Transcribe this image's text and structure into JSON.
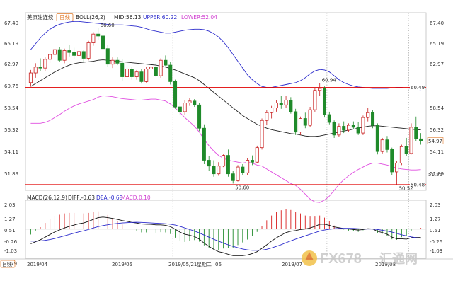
{
  "colors": {
    "up": "#c81e1e",
    "down": "#1f8a2a",
    "mid": "#222222",
    "upper": "#2b2bcc",
    "lower": "#e04de0",
    "hline": "#e00000",
    "dashed": "#4aa8b8",
    "diff": "#111111",
    "dea": "#2b2bcc",
    "hist_pos": "#d81e1e",
    "hist_neg": "#1f8a2a"
  },
  "legend": {
    "symbol": "美原油连续",
    "period_badge": "日线",
    "boll": "BOLL(26,2)",
    "mid": "MID:56.13",
    "upper": "UPPER:60.22",
    "lower": "LOWER:52.04",
    "macd": "MACD(26,12,9)",
    "diff": "DIFF:-0.63",
    "dea": "DEA:-0.68",
    "macd_val": "MACD:0.10"
  },
  "left_axis_main": [
    "67.40",
    "65.19",
    "62.97",
    "60.76",
    "58.54",
    "56.32",
    "54.11",
    "51.89"
  ],
  "right_axis_main": [
    "67.40",
    "65.19",
    "62.97",
    "60.76",
    "58.54",
    "56.32",
    "54.11",
    "51.89"
  ],
  "left_axis_macd": [
    "2.03",
    "1.27",
    "0.51",
    "-0.26",
    "-1.03",
    "-1.79"
  ],
  "right_axis_macd": [
    "2.03",
    "1.27",
    "0.51",
    "-0.26",
    "-1.03",
    "-1.79"
  ],
  "price_labels": {
    "resistance": "60.49",
    "support": "50.48",
    "last": "54.97",
    "right_extra": "51.55"
  },
  "annotations": {
    "high1": "66.60",
    "high2": "60.94",
    "low1": "50.60",
    "low2": "50.52"
  },
  "bottom": {
    "period": "日线",
    "d1": "2019/04",
    "d2": "2019/05",
    "cursor_date": "2019/05/21",
    "cursor_day": "星期二",
    "d3": "06",
    "d4": "2019/07",
    "d5": "2019/08"
  },
  "watermark": {
    "brand": "FX678",
    "cn": "汇通网"
  },
  "chart_data": [
    {
      "type": "candlestick",
      "title": "美原油连续",
      "ylim": [
        49.9,
        68.2
      ],
      "yticks": [
        67.4,
        65.19,
        62.97,
        60.76,
        58.54,
        56.32,
        54.11,
        51.89
      ],
      "hlines": [
        60.49,
        50.48
      ],
      "dashed_hline": 54.97,
      "ohlc": [
        [
          61.0,
          62.3,
          60.6,
          62.0
        ],
        [
          62.0,
          63.0,
          61.5,
          62.6
        ],
        [
          62.6,
          63.5,
          62.2,
          62.5
        ],
        [
          62.5,
          63.6,
          62.2,
          63.4
        ],
        [
          63.4,
          64.3,
          63.0,
          63.9
        ],
        [
          63.9,
          64.8,
          63.4,
          64.4
        ],
        [
          64.4,
          64.7,
          63.1,
          63.3
        ],
        [
          63.3,
          64.5,
          63.0,
          64.3
        ],
        [
          64.3,
          64.9,
          63.7,
          64.1
        ],
        [
          64.1,
          64.6,
          63.4,
          63.8
        ],
        [
          63.8,
          64.5,
          63.2,
          64.2
        ],
        [
          64.2,
          64.4,
          63.1,
          63.5
        ],
        [
          63.5,
          65.3,
          63.3,
          65.1
        ],
        [
          65.1,
          66.2,
          64.8,
          66.0
        ],
        [
          66.0,
          66.6,
          65.4,
          65.8
        ],
        [
          65.8,
          66.0,
          64.3,
          64.5
        ],
        [
          64.5,
          64.9,
          62.6,
          62.9
        ],
        [
          62.9,
          63.6,
          62.5,
          63.3
        ],
        [
          63.3,
          63.6,
          62.8,
          63.0
        ],
        [
          63.0,
          63.4,
          61.2,
          61.6
        ],
        [
          61.6,
          62.7,
          61.4,
          62.4
        ],
        [
          62.4,
          62.6,
          61.3,
          61.6
        ],
        [
          61.6,
          62.3,
          61.3,
          62.1
        ],
        [
          62.1,
          62.4,
          60.9,
          61.1
        ],
        [
          61.1,
          62.6,
          61.0,
          62.4
        ],
        [
          62.4,
          63.1,
          61.9,
          62.6
        ],
        [
          62.6,
          63.0,
          61.6,
          61.7
        ],
        [
          61.7,
          63.5,
          61.5,
          63.3
        ],
        [
          63.3,
          63.8,
          62.7,
          62.8
        ],
        [
          62.8,
          63.1,
          60.8,
          61.1
        ],
        [
          61.1,
          61.3,
          58.3,
          58.5
        ],
        [
          58.5,
          59.0,
          57.7,
          58.0
        ],
        [
          58.0,
          59.2,
          57.7,
          58.9
        ],
        [
          58.9,
          59.4,
          58.6,
          59.1
        ],
        [
          59.1,
          59.3,
          58.5,
          58.7
        ],
        [
          58.7,
          58.9,
          56.0,
          56.3
        ],
        [
          56.3,
          56.7,
          52.6,
          53.0
        ],
        [
          53.0,
          53.4,
          51.9,
          52.4
        ],
        [
          52.4,
          53.0,
          51.3,
          51.6
        ],
        [
          51.6,
          52.8,
          51.4,
          52.4
        ],
        [
          52.4,
          53.6,
          52.3,
          53.5
        ],
        [
          53.5,
          54.1,
          51.3,
          51.6
        ],
        [
          51.6,
          51.9,
          50.6,
          50.9
        ],
        [
          50.9,
          52.5,
          50.8,
          52.3
        ],
        [
          52.3,
          52.6,
          51.5,
          51.7
        ],
        [
          51.7,
          53.2,
          51.5,
          53.0
        ],
        [
          53.0,
          53.5,
          52.5,
          52.8
        ],
        [
          52.8,
          54.5,
          52.7,
          54.3
        ],
        [
          54.3,
          57.3,
          54.1,
          57.1
        ],
        [
          57.1,
          58.2,
          56.6,
          57.9
        ],
        [
          57.9,
          58.6,
          57.3,
          58.4
        ],
        [
          58.4,
          59.2,
          58.0,
          58.9
        ],
        [
          58.9,
          59.6,
          58.3,
          58.7
        ],
        [
          58.7,
          59.6,
          58.4,
          59.2
        ],
        [
          59.2,
          59.5,
          57.8,
          58.0
        ],
        [
          58.0,
          58.3,
          55.6,
          55.9
        ],
        [
          55.9,
          57.5,
          55.6,
          57.3
        ],
        [
          57.3,
          57.9,
          56.3,
          56.6
        ],
        [
          56.6,
          58.5,
          56.4,
          58.2
        ],
        [
          58.2,
          60.5,
          58.0,
          60.2
        ],
        [
          60.2,
          60.94,
          59.6,
          60.4
        ],
        [
          60.4,
          60.6,
          57.4,
          57.7
        ],
        [
          57.7,
          58.0,
          56.7,
          56.9
        ],
        [
          56.9,
          57.1,
          55.3,
          55.6
        ],
        [
          55.6,
          56.8,
          55.4,
          56.5
        ],
        [
          56.5,
          57.0,
          55.8,
          56.1
        ],
        [
          56.1,
          56.8,
          55.9,
          56.6
        ],
        [
          56.6,
          57.0,
          56.2,
          56.4
        ],
        [
          56.4,
          56.9,
          55.6,
          55.8
        ],
        [
          55.8,
          57.6,
          55.6,
          57.4
        ],
        [
          57.4,
          58.4,
          57.0,
          57.9
        ],
        [
          57.9,
          58.2,
          56.3,
          56.6
        ],
        [
          56.6,
          56.8,
          53.6,
          53.9
        ],
        [
          53.9,
          55.3,
          53.7,
          55.1
        ],
        [
          55.1,
          55.5,
          53.8,
          54.1
        ],
        [
          54.1,
          54.3,
          51.5,
          51.8
        ],
        [
          51.8,
          52.9,
          50.52,
          52.7
        ],
        [
          52.7,
          54.6,
          52.5,
          54.4
        ],
        [
          54.4,
          55.3,
          53.4,
          53.7
        ],
        [
          53.7,
          56.8,
          53.6,
          56.4
        ],
        [
          56.4,
          57.5,
          55.0,
          55.2
        ],
        [
          55.2,
          55.8,
          54.6,
          54.97
        ]
      ]
    },
    {
      "type": "line",
      "title": "BOLL(26,2)",
      "series": [
        {
          "name": "MID",
          "values": [
            60.6,
            60.9,
            61.2,
            61.5,
            61.8,
            62.1,
            62.35,
            62.6,
            62.8,
            62.95,
            63.05,
            63.1,
            63.15,
            63.2,
            63.3,
            63.35,
            63.3,
            63.25,
            63.2,
            63.15,
            63.1,
            63.05,
            63.0,
            62.95,
            62.9,
            62.85,
            62.8,
            62.7,
            62.6,
            62.45,
            62.3,
            62.1,
            61.9,
            61.7,
            61.5,
            61.2,
            60.8,
            60.4,
            60.0,
            59.6,
            59.2,
            58.8,
            58.4,
            58.0,
            57.6,
            57.3,
            57.0,
            56.7,
            56.5,
            56.3,
            56.15,
            56.05,
            55.95,
            55.85,
            55.75,
            55.7,
            55.6,
            55.5,
            55.45,
            55.45,
            55.5,
            55.6,
            55.7,
            55.8,
            55.9,
            56.0,
            56.1,
            56.2,
            56.3,
            56.4,
            56.5,
            56.55,
            56.55,
            56.5,
            56.45,
            56.4,
            56.35,
            56.3,
            56.25,
            56.2,
            56.15,
            56.13
          ]
        },
        {
          "name": "UPPER",
          "values": [
            64.4,
            65.0,
            65.6,
            66.1,
            66.5,
            66.8,
            67.0,
            67.15,
            67.25,
            67.3,
            67.3,
            67.25,
            67.2,
            67.15,
            67.1,
            67.05,
            67.0,
            66.95,
            66.95,
            66.95,
            66.9,
            66.85,
            66.8,
            66.7,
            66.55,
            66.4,
            66.3,
            66.2,
            66.1,
            66.1,
            66.2,
            66.3,
            66.4,
            66.45,
            66.5,
            66.5,
            66.45,
            66.3,
            66.05,
            65.7,
            65.2,
            64.6,
            63.9,
            63.2,
            62.5,
            61.8,
            61.3,
            60.9,
            60.6,
            60.5,
            60.5,
            60.6,
            60.7,
            60.8,
            60.9,
            61.0,
            61.2,
            61.5,
            61.9,
            62.2,
            62.35,
            62.3,
            62.1,
            61.7,
            61.3,
            61.0,
            60.8,
            60.65,
            60.55,
            60.5,
            60.45,
            60.4,
            60.4,
            60.4,
            60.4,
            60.45,
            60.5,
            60.5,
            60.45,
            60.4,
            60.3,
            60.22
          ]
        },
        {
          "name": "LOWER",
          "values": [
            56.8,
            56.8,
            56.8,
            56.9,
            57.1,
            57.4,
            57.7,
            58.05,
            58.35,
            58.6,
            58.8,
            58.95,
            59.1,
            59.25,
            59.5,
            59.65,
            59.6,
            59.55,
            59.45,
            59.35,
            59.3,
            59.25,
            59.2,
            59.2,
            59.25,
            59.3,
            59.3,
            59.2,
            59.1,
            58.8,
            58.4,
            57.9,
            57.4,
            56.95,
            56.5,
            55.9,
            55.15,
            54.5,
            53.95,
            53.5,
            53.2,
            53.0,
            52.9,
            52.8,
            52.7,
            52.8,
            52.7,
            52.5,
            52.4,
            52.1,
            51.8,
            51.5,
            51.2,
            50.9,
            50.6,
            50.4,
            50.0,
            49.5,
            49.0,
            48.7,
            48.65,
            48.9,
            49.3,
            49.9,
            50.5,
            51.0,
            51.4,
            51.75,
            52.05,
            52.3,
            52.55,
            52.7,
            52.7,
            52.6,
            52.5,
            52.35,
            52.2,
            52.1,
            52.05,
            52.0,
            52.0,
            52.04
          ]
        }
      ]
    },
    {
      "type": "bar",
      "title": "MACD(26,12,9)",
      "ylim": [
        -2.2,
        2.2
      ],
      "yticks": [
        2.03,
        1.27,
        0.51,
        -0.26,
        -1.03,
        -1.79
      ],
      "series": [
        {
          "name": "DIFF",
          "values": [
            -1.1,
            -0.95,
            -0.8,
            -0.6,
            -0.4,
            -0.2,
            -0.05,
            0.1,
            0.22,
            0.32,
            0.42,
            0.48,
            0.6,
            0.75,
            0.88,
            0.92,
            0.88,
            0.82,
            0.75,
            0.66,
            0.6,
            0.52,
            0.47,
            0.4,
            0.38,
            0.37,
            0.33,
            0.33,
            0.3,
            0.2,
            0.0,
            -0.22,
            -0.38,
            -0.45,
            -0.55,
            -0.75,
            -1.05,
            -1.3,
            -1.52,
            -1.7,
            -1.78,
            -1.9,
            -2.0,
            -2.0,
            -2.0,
            -1.95,
            -1.85,
            -1.7,
            -1.45,
            -1.18,
            -0.9,
            -0.65,
            -0.45,
            -0.25,
            -0.15,
            -0.1,
            -0.02,
            0.02,
            0.1,
            0.22,
            0.38,
            0.38,
            0.3,
            0.18,
            0.12,
            0.06,
            0.02,
            -0.02,
            -0.06,
            -0.02,
            0.04,
            0.02,
            -0.16,
            -0.25,
            -0.38,
            -0.6,
            -0.72,
            -0.72,
            -0.75,
            -0.65,
            -0.62,
            -0.63
          ]
        },
        {
          "name": "DEA",
          "values": [
            -0.9,
            -0.9,
            -0.88,
            -0.84,
            -0.78,
            -0.7,
            -0.6,
            -0.5,
            -0.4,
            -0.3,
            -0.2,
            -0.12,
            -0.02,
            0.1,
            0.2,
            0.28,
            0.34,
            0.4,
            0.44,
            0.48,
            0.5,
            0.52,
            0.53,
            0.52,
            0.5,
            0.48,
            0.46,
            0.44,
            0.42,
            0.38,
            0.32,
            0.22,
            0.1,
            -0.02,
            -0.14,
            -0.28,
            -0.44,
            -0.6,
            -0.76,
            -0.9,
            -1.05,
            -1.18,
            -1.3,
            -1.4,
            -1.5,
            -1.56,
            -1.6,
            -1.6,
            -1.58,
            -1.52,
            -1.42,
            -1.3,
            -1.17,
            -1.02,
            -0.88,
            -0.75,
            -0.62,
            -0.5,
            -0.38,
            -0.26,
            -0.14,
            -0.06,
            0.0,
            0.04,
            0.06,
            0.07,
            0.07,
            0.06,
            0.04,
            0.02,
            0.02,
            0.02,
            -0.02,
            -0.08,
            -0.14,
            -0.22,
            -0.32,
            -0.42,
            -0.5,
            -0.58,
            -0.64,
            -0.68
          ]
        },
        {
          "name": "MACD",
          "values": [
            -0.4,
            -0.1,
            0.16,
            0.48,
            0.76,
            1.0,
            1.1,
            1.2,
            1.24,
            1.24,
            1.24,
            1.2,
            1.24,
            1.3,
            1.36,
            1.28,
            1.08,
            0.84,
            0.62,
            0.36,
            0.2,
            0.0,
            -0.12,
            -0.24,
            -0.24,
            -0.22,
            -0.26,
            -0.22,
            -0.24,
            -0.36,
            -0.64,
            -0.88,
            -0.96,
            -0.86,
            -0.82,
            -0.94,
            -1.22,
            -1.4,
            -1.52,
            -1.6,
            -1.46,
            -1.44,
            -1.4,
            -1.2,
            -1.0,
            -0.78,
            -0.5,
            -0.2,
            0.26,
            0.68,
            1.04,
            1.3,
            1.44,
            1.54,
            1.46,
            1.3,
            1.2,
            1.04,
            0.96,
            0.96,
            1.04,
            0.88,
            0.6,
            0.28,
            0.12,
            -0.02,
            -0.1,
            -0.16,
            -0.2,
            -0.08,
            0.04,
            0.0,
            -0.28,
            -0.34,
            -0.48,
            -0.76,
            -0.8,
            -0.6,
            -0.5,
            -0.14,
            0.04,
            0.1
          ]
        }
      ]
    }
  ]
}
